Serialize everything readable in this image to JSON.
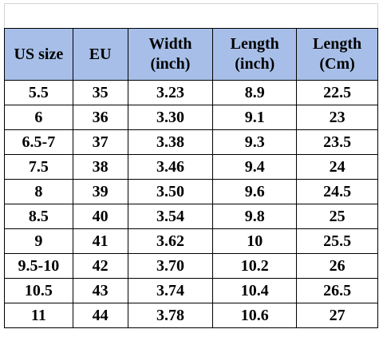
{
  "table": {
    "header": [
      "US size",
      "EU",
      "Width\n(inch)",
      "Length\n(inch)",
      "Length\n(Cm)"
    ],
    "rows": [
      [
        "5.5",
        "35",
        "3.23",
        "8.9",
        "22.5"
      ],
      [
        "6",
        "36",
        "3.30",
        "9.1",
        "23"
      ],
      [
        "6.5-7",
        "37",
        "3.38",
        "9.3",
        "23.5"
      ],
      [
        "7.5",
        "38",
        "3.46",
        "9.4",
        "24"
      ],
      [
        "8",
        "39",
        "3.50",
        "9.6",
        "24.5"
      ],
      [
        "8.5",
        "40",
        "3.54",
        "9.8",
        "25"
      ],
      [
        "9",
        "41",
        "3.62",
        "10",
        "25.5"
      ],
      [
        "9.5-10",
        "42",
        "3.70",
        "10.2",
        "26"
      ],
      [
        "10.5",
        "43",
        "3.74",
        "10.4",
        "26.5"
      ],
      [
        "11",
        "44",
        "3.78",
        "10.6",
        "27"
      ]
    ]
  }
}
